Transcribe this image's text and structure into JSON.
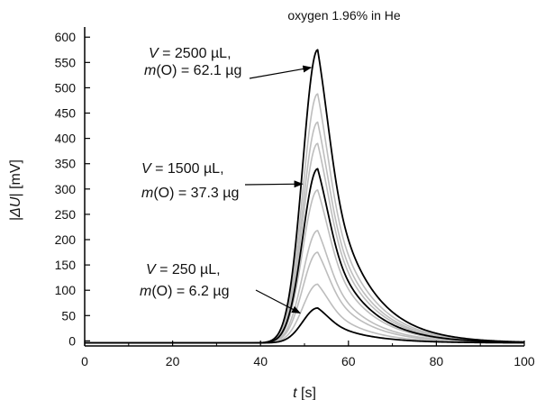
{
  "chart_data": {
    "type": "line",
    "title": "oxygen 1.96% in He",
    "xlabel": {
      "italic": "t",
      "rest": " [s]"
    },
    "ylabel": {
      "pre": "|",
      "italic": "ΔU",
      "post": "| [mV]"
    },
    "xlim": [
      0,
      100
    ],
    "ylim": [
      -10,
      620
    ],
    "xticks": [
      0,
      20,
      40,
      60,
      80,
      100
    ],
    "yticks": [
      0,
      50,
      100,
      150,
      200,
      250,
      300,
      350,
      400,
      450,
      500,
      550,
      600
    ],
    "grid": false,
    "legend": "none",
    "colors": {
      "highlight": "#000000",
      "other": "#bdbdbd"
    },
    "peak_time": 53,
    "series": [
      {
        "peak": 65,
        "highlight": true
      },
      {
        "peak": 112,
        "highlight": false
      },
      {
        "peak": 175,
        "highlight": false
      },
      {
        "peak": 218,
        "highlight": false
      },
      {
        "peak": 298,
        "highlight": false
      },
      {
        "peak": 340,
        "highlight": true
      },
      {
        "peak": 390,
        "highlight": false
      },
      {
        "peak": 432,
        "highlight": false
      },
      {
        "peak": 488,
        "highlight": false
      },
      {
        "peak": 575,
        "highlight": true
      }
    ],
    "annotations": [
      {
        "line1": {
          "italic": "V",
          "rest": " = 2500 µL,"
        },
        "line2": {
          "italic": "m",
          "rest": "(O) = 62.1 µg"
        },
        "target_x": 51.5,
        "target_y": 540
      },
      {
        "line1": {
          "italic": "V",
          "rest": " = 1500 µL,"
        },
        "line2": {
          "italic": "m",
          "rest": "(O) = 37.3 µg"
        },
        "target_x": 49.5,
        "target_y": 310
      },
      {
        "line1": {
          "italic": "V",
          "rest": " = 250 µL,"
        },
        "line2": {
          "italic": "m",
          "rest": "(O) = 6.2 µg"
        },
        "target_x": 49,
        "target_y": 55
      }
    ]
  }
}
